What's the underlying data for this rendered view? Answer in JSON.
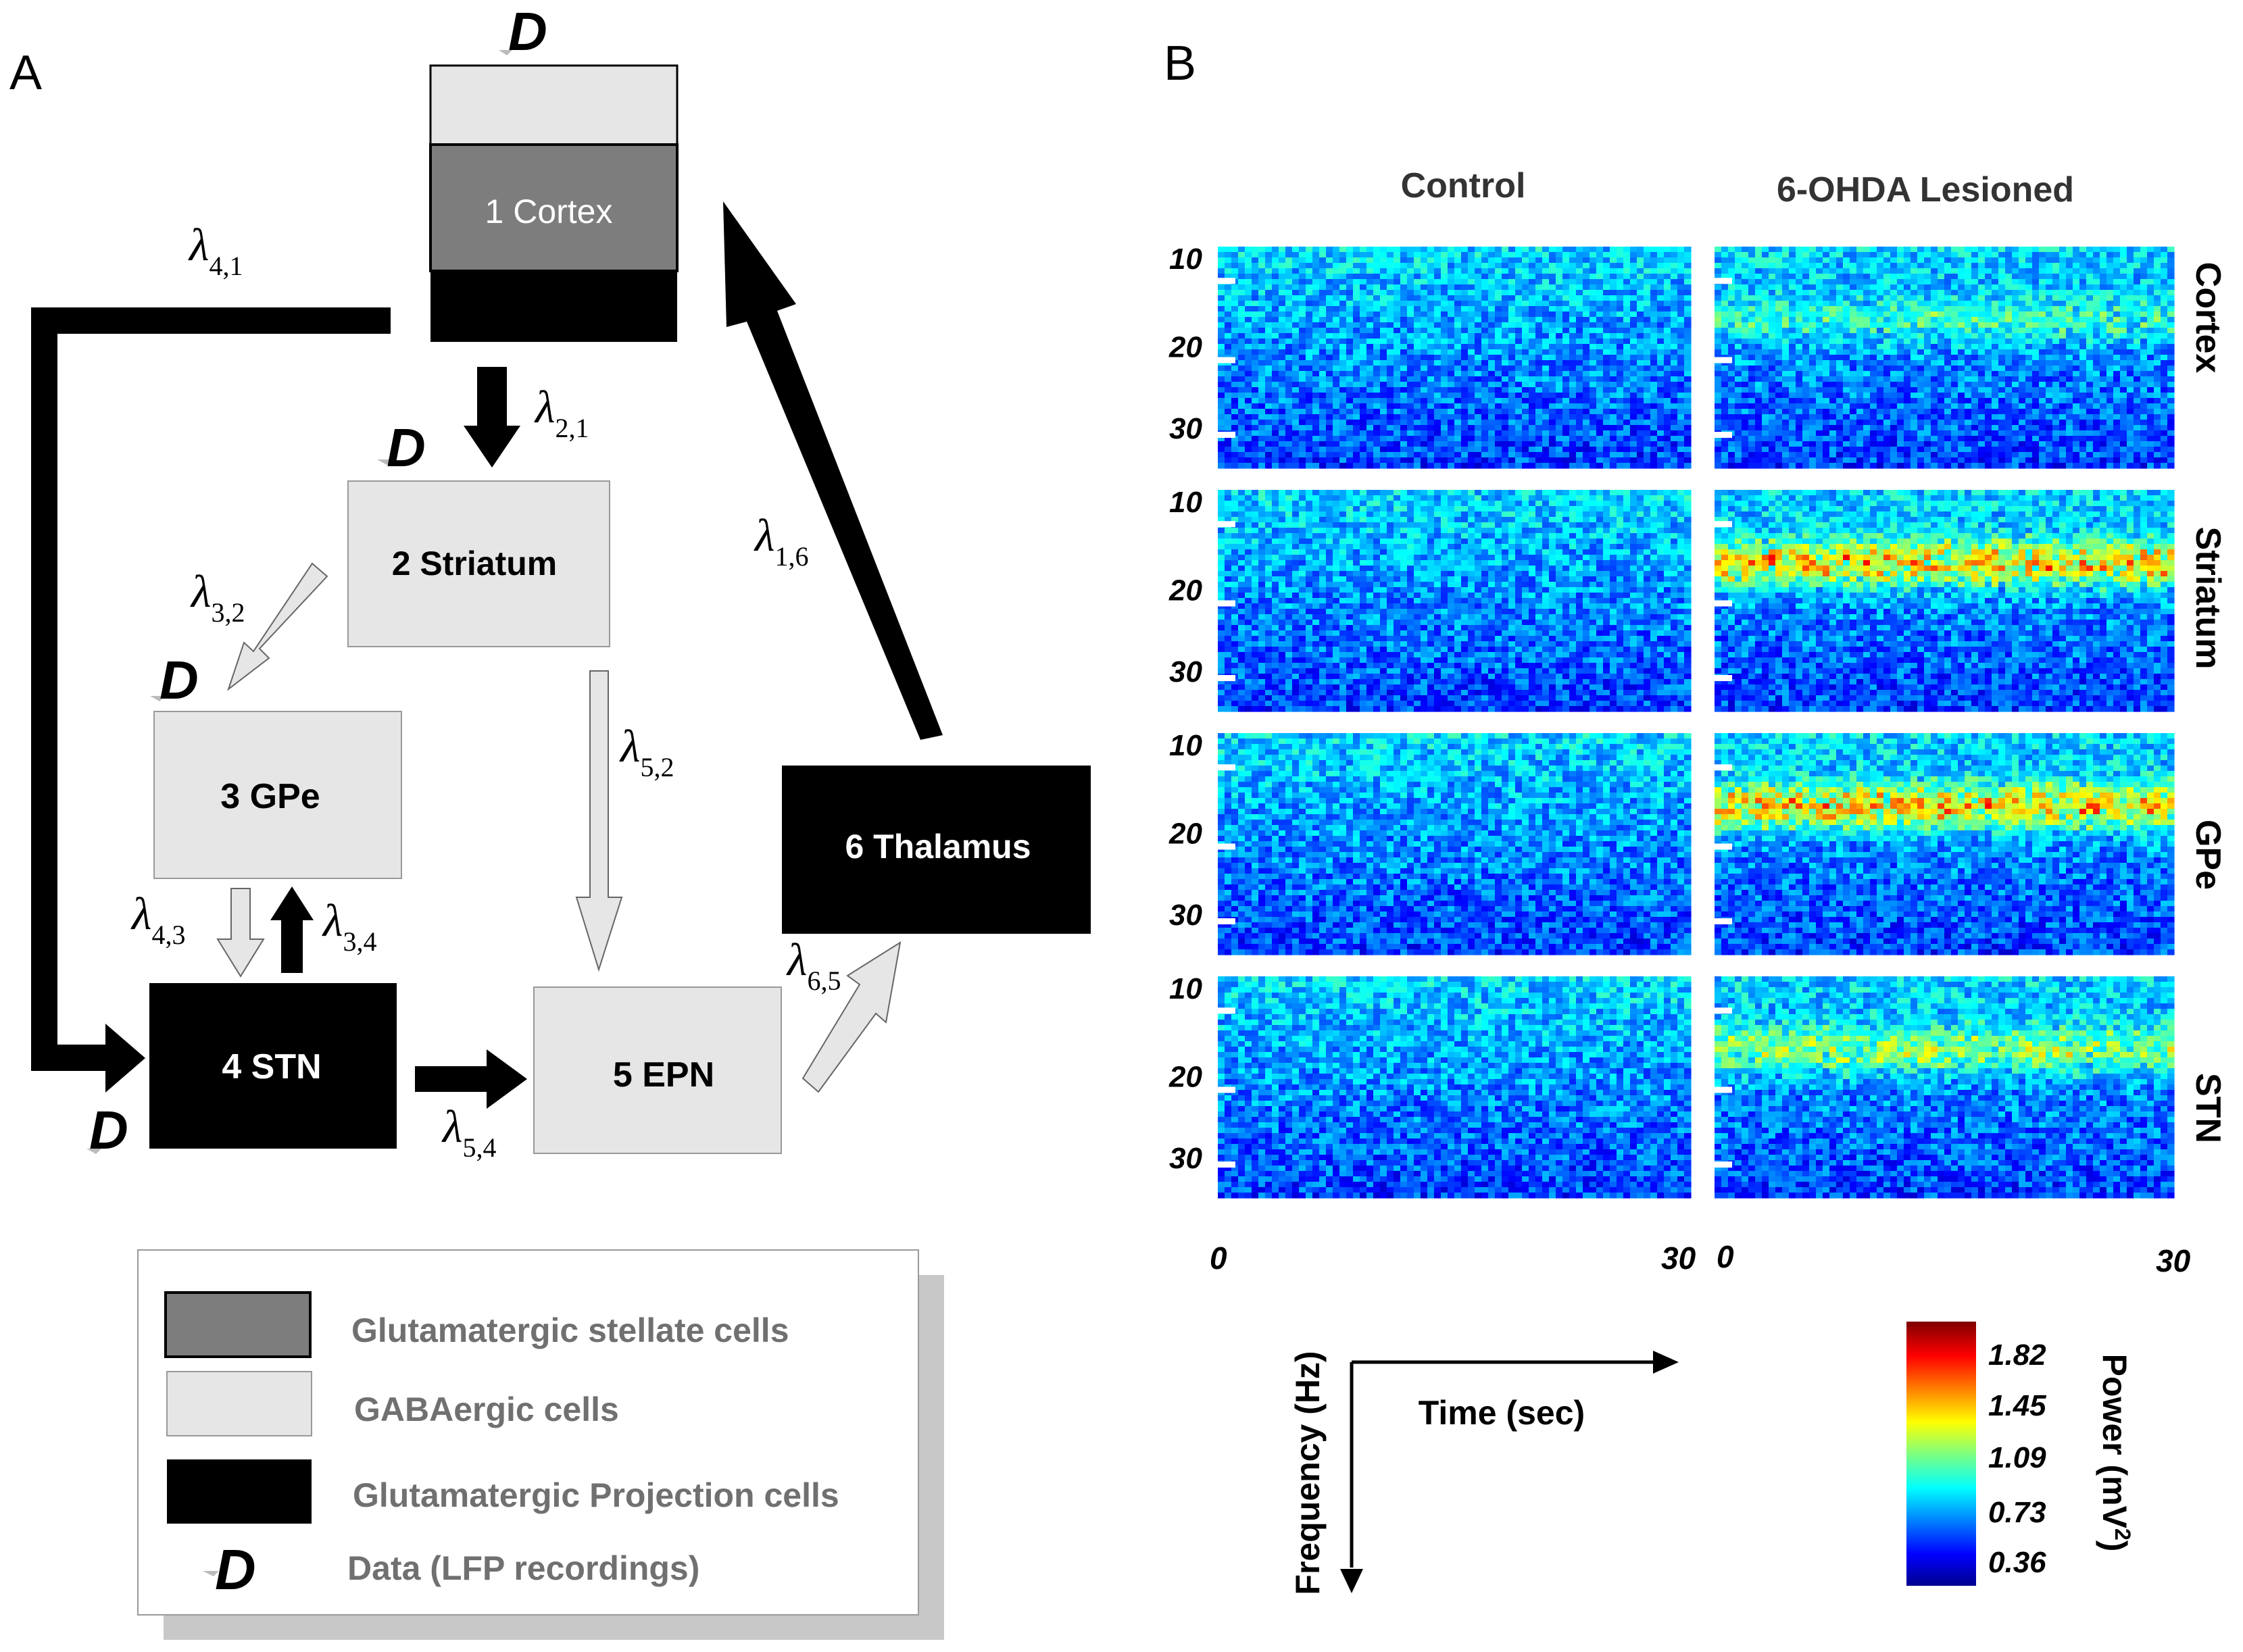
{
  "panel_a": {
    "label": "A",
    "data_marker": "D",
    "nodes": {
      "cortex": "1 Cortex",
      "striatum": "2 Striatum",
      "gpe": "3 GPe",
      "stn": "4 STN",
      "epn": "5 EPN",
      "thalamus": "6 Thalamus"
    },
    "lambda_symbol": "λ",
    "connections": {
      "l41": "4,1",
      "l21": "2,1",
      "l32": "3,2",
      "l52": "5,2",
      "l16": "1,6",
      "l43": "4,3",
      "l34": "3,4",
      "l65": "6,5",
      "l54": "5,4"
    },
    "legend": {
      "stellate": "Glutamatergic stellate cells",
      "gaba": "GABAergic cells",
      "projection": "Glutamatergic Projection cells",
      "data": "Data (LFP recordings)"
    },
    "colors": {
      "stellate": "#7d7d7d",
      "gaba": "#e6e6e6",
      "projection": "#000000"
    }
  },
  "panel_b": {
    "label": "B",
    "columns": [
      "Control",
      "6-OHDA Lesioned"
    ],
    "rows": [
      "Cortex",
      "Striatum",
      "GPe",
      "STN"
    ],
    "y_ticks": [
      "10",
      "20",
      "30"
    ],
    "x_ticks": [
      "0",
      "30"
    ],
    "axis_freq": "Frequency (Hz)",
    "axis_time": "Time (sec)",
    "colorbar": {
      "title": "Power (mV",
      "title_sup": "2",
      "title_end": ")",
      "ticks": [
        "1.82",
        "1.45",
        "1.09",
        "0.73",
        "0.36"
      ]
    }
  }
}
